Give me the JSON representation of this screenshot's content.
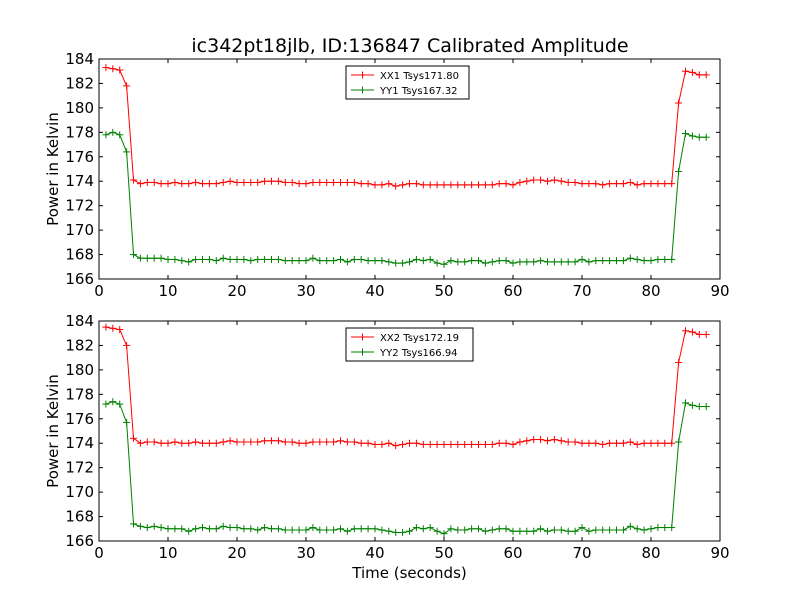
{
  "figure": {
    "title": "ic342pt18jlb, ID:136847 Calibrated Amplitude"
  },
  "colors": {
    "xx": "#ff0000",
    "yy": "#008000",
    "axes": "#000000",
    "background": "#ffffff"
  },
  "chart_data": [
    {
      "type": "line",
      "title": "ic342pt18jlb, ID:136847 Calibrated Amplitude",
      "xlabel": "",
      "ylabel": "Power in Kelvin",
      "xlim": [
        0,
        90
      ],
      "ylim": [
        166,
        184
      ],
      "xticks": [
        0,
        10,
        20,
        30,
        40,
        50,
        60,
        70,
        80,
        90
      ],
      "yticks": [
        166,
        168,
        170,
        172,
        174,
        176,
        178,
        180,
        182,
        184
      ],
      "grid": false,
      "legend": "upper-center",
      "x": [
        1,
        2,
        3,
        4,
        5,
        6,
        7,
        8,
        9,
        10,
        11,
        12,
        13,
        14,
        15,
        16,
        17,
        18,
        19,
        20,
        21,
        22,
        23,
        24,
        25,
        26,
        27,
        28,
        29,
        30,
        31,
        32,
        33,
        34,
        35,
        36,
        37,
        38,
        39,
        40,
        41,
        42,
        43,
        44,
        45,
        46,
        47,
        48,
        49,
        50,
        51,
        52,
        53,
        54,
        55,
        56,
        57,
        58,
        59,
        60,
        61,
        62,
        63,
        64,
        65,
        66,
        67,
        68,
        69,
        70,
        71,
        72,
        73,
        74,
        75,
        76,
        77,
        78,
        79,
        80,
        81,
        82,
        83,
        84,
        85,
        86,
        87,
        88
      ],
      "series": [
        {
          "name": "XX1 Tsys171.80",
          "color": "#ff0000",
          "values": [
            183.3,
            183.2,
            183.1,
            181.8,
            174.1,
            173.8,
            173.9,
            173.9,
            173.8,
            173.8,
            173.9,
            173.8,
            173.8,
            173.9,
            173.8,
            173.8,
            173.8,
            173.9,
            174.0,
            173.9,
            173.9,
            173.9,
            173.9,
            174.0,
            174.0,
            174.0,
            173.9,
            173.9,
            173.8,
            173.8,
            173.9,
            173.9,
            173.9,
            173.9,
            173.9,
            173.9,
            173.9,
            173.8,
            173.8,
            173.7,
            173.7,
            173.8,
            173.6,
            173.7,
            173.8,
            173.8,
            173.7,
            173.7,
            173.7,
            173.7,
            173.7,
            173.7,
            173.7,
            173.7,
            173.7,
            173.7,
            173.7,
            173.8,
            173.8,
            173.7,
            173.9,
            174.0,
            174.1,
            174.1,
            174.0,
            174.1,
            174.0,
            173.9,
            173.9,
            173.8,
            173.8,
            173.8,
            173.7,
            173.8,
            173.8,
            173.8,
            173.9,
            173.7,
            173.8,
            173.8,
            173.8,
            173.8,
            173.8,
            180.4,
            183.0,
            182.9,
            182.7,
            182.7
          ]
        },
        {
          "name": "YY1 Tsys167.32",
          "color": "#008000",
          "values": [
            177.8,
            178.0,
            177.8,
            176.4,
            168.0,
            167.7,
            167.7,
            167.7,
            167.7,
            167.6,
            167.6,
            167.5,
            167.4,
            167.6,
            167.6,
            167.6,
            167.5,
            167.7,
            167.6,
            167.6,
            167.6,
            167.5,
            167.6,
            167.6,
            167.6,
            167.6,
            167.5,
            167.5,
            167.5,
            167.5,
            167.7,
            167.5,
            167.5,
            167.5,
            167.6,
            167.4,
            167.6,
            167.6,
            167.5,
            167.5,
            167.5,
            167.4,
            167.3,
            167.3,
            167.4,
            167.6,
            167.5,
            167.6,
            167.3,
            167.2,
            167.5,
            167.4,
            167.4,
            167.5,
            167.5,
            167.3,
            167.4,
            167.5,
            167.5,
            167.3,
            167.4,
            167.4,
            167.4,
            167.5,
            167.4,
            167.4,
            167.4,
            167.4,
            167.4,
            167.6,
            167.4,
            167.5,
            167.5,
            167.5,
            167.5,
            167.5,
            167.7,
            167.6,
            167.5,
            167.5,
            167.6,
            167.6,
            167.6,
            174.8,
            177.9,
            177.7,
            177.6,
            177.6
          ]
        }
      ]
    },
    {
      "type": "line",
      "title": "",
      "xlabel": "Time (seconds)",
      "ylabel": "Power in Kelvin",
      "xlim": [
        0,
        90
      ],
      "ylim": [
        166,
        184
      ],
      "xticks": [
        0,
        10,
        20,
        30,
        40,
        50,
        60,
        70,
        80,
        90
      ],
      "yticks": [
        166,
        168,
        170,
        172,
        174,
        176,
        178,
        180,
        182,
        184
      ],
      "grid": false,
      "legend": "upper-center",
      "x": [
        1,
        2,
        3,
        4,
        5,
        6,
        7,
        8,
        9,
        10,
        11,
        12,
        13,
        14,
        15,
        16,
        17,
        18,
        19,
        20,
        21,
        22,
        23,
        24,
        25,
        26,
        27,
        28,
        29,
        30,
        31,
        32,
        33,
        34,
        35,
        36,
        37,
        38,
        39,
        40,
        41,
        42,
        43,
        44,
        45,
        46,
        47,
        48,
        49,
        50,
        51,
        52,
        53,
        54,
        55,
        56,
        57,
        58,
        59,
        60,
        61,
        62,
        63,
        64,
        65,
        66,
        67,
        68,
        69,
        70,
        71,
        72,
        73,
        74,
        75,
        76,
        77,
        78,
        79,
        80,
        81,
        82,
        83,
        84,
        85,
        86,
        87,
        88
      ],
      "series": [
        {
          "name": "XX2 Tsys172.19",
          "color": "#ff0000",
          "values": [
            183.5,
            183.4,
            183.3,
            182.0,
            174.4,
            174.0,
            174.1,
            174.1,
            174.0,
            174.0,
            174.1,
            174.0,
            174.0,
            174.1,
            174.0,
            174.0,
            174.0,
            174.1,
            174.2,
            174.1,
            174.1,
            174.1,
            174.1,
            174.2,
            174.2,
            174.2,
            174.1,
            174.1,
            174.0,
            174.0,
            174.1,
            174.1,
            174.1,
            174.1,
            174.2,
            174.1,
            174.1,
            174.0,
            174.0,
            173.9,
            173.9,
            174.0,
            173.8,
            173.9,
            174.0,
            174.0,
            173.9,
            173.9,
            173.9,
            173.9,
            173.9,
            173.9,
            173.9,
            173.9,
            173.9,
            173.9,
            173.9,
            174.0,
            174.0,
            173.9,
            174.1,
            174.2,
            174.3,
            174.3,
            174.2,
            174.3,
            174.2,
            174.1,
            174.1,
            174.0,
            174.0,
            174.0,
            173.9,
            174.0,
            174.0,
            174.0,
            174.1,
            173.9,
            174.0,
            174.0,
            174.0,
            174.0,
            174.0,
            180.6,
            183.2,
            183.1,
            182.9,
            182.9
          ]
        },
        {
          "name": "YY2 Tsys166.94",
          "color": "#008000",
          "values": [
            177.2,
            177.4,
            177.2,
            175.7,
            167.4,
            167.2,
            167.1,
            167.2,
            167.1,
            167.0,
            167.0,
            167.0,
            166.8,
            167.0,
            167.1,
            167.0,
            167.0,
            167.2,
            167.1,
            167.1,
            167.0,
            167.0,
            166.9,
            167.1,
            167.0,
            167.0,
            166.9,
            166.9,
            166.9,
            166.9,
            167.1,
            166.9,
            166.9,
            166.9,
            167.0,
            166.8,
            167.0,
            167.0,
            167.0,
            167.0,
            166.9,
            166.8,
            166.7,
            166.7,
            166.8,
            167.1,
            167.0,
            167.1,
            166.8,
            166.6,
            167.0,
            166.9,
            166.9,
            167.0,
            167.0,
            166.8,
            166.9,
            167.0,
            167.0,
            166.8,
            166.8,
            166.8,
            166.8,
            167.0,
            166.8,
            166.9,
            166.9,
            166.8,
            166.8,
            167.1,
            166.8,
            166.9,
            166.9,
            166.9,
            166.9,
            166.9,
            167.2,
            167.0,
            166.9,
            167.0,
            167.1,
            167.1,
            167.1,
            174.1,
            177.3,
            177.1,
            177.0,
            177.0
          ]
        }
      ]
    }
  ]
}
